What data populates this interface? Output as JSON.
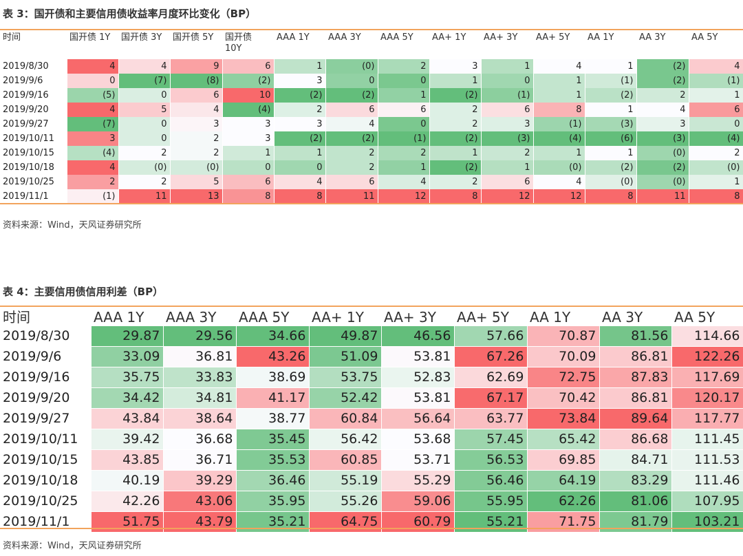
{
  "table3": {
    "title": "表 3：国开债和主要信用债收益率月度环比变化（BP）",
    "headers": [
      "时间",
      "国开债 1Y",
      "国开债 3Y",
      "国开债 5Y",
      "国开债 10Y",
      "AAA 1Y",
      "AAA 3Y",
      "AAA 5Y",
      "AA+ 1Y",
      "AA+ 3Y",
      "AA+ 5Y",
      "AA 1Y",
      "AA 3Y",
      "AA 5Y"
    ],
    "rows": [
      {
        "date": "2019/8/30",
        "cells": [
          "4",
          "4",
          "9",
          "6",
          "1",
          "(0)",
          "2",
          "3",
          "1",
          "4",
          "1",
          "(2)",
          "4"
        ]
      },
      {
        "date": "2019/9/6",
        "cells": [
          "0",
          "(7)",
          "(8)",
          "(2)",
          "3",
          "0",
          "0",
          "1",
          "0",
          "1",
          "(1)",
          "(2)",
          "(1)"
        ]
      },
      {
        "date": "2019/9/16",
        "cells": [
          "(5)",
          "0",
          "6",
          "10",
          "(2)",
          "(2)",
          "1",
          "(2)",
          "(1)",
          "1",
          "(2)",
          "2",
          "1"
        ]
      },
      {
        "date": "2019/9/20",
        "cells": [
          "4",
          "5",
          "4",
          "(4)",
          "2",
          "6",
          "6",
          "2",
          "6",
          "8",
          "1",
          "4",
          "6"
        ]
      },
      {
        "date": "2019/9/27",
        "cells": [
          "(7)",
          "0",
          "3",
          "3",
          "3",
          "4",
          "0",
          "2",
          "3",
          "(1)",
          "(3)",
          "3",
          "0"
        ]
      },
      {
        "date": "2019/10/11",
        "cells": [
          "3",
          "0",
          "2",
          "3",
          "(2)",
          "(2)",
          "(1)",
          "(2)",
          "(3)",
          "(4)",
          "(6)",
          "(3)",
          "(4)"
        ]
      },
      {
        "date": "2019/10/15",
        "cells": [
          "(4)",
          "2",
          "2",
          "1",
          "1",
          "2",
          "2",
          "1",
          "2",
          "1",
          "1",
          "(0)",
          "2"
        ]
      },
      {
        "date": "2019/10/18",
        "cells": [
          "4",
          "(0)",
          "(0)",
          "0",
          "0",
          "2",
          "1",
          "(2)",
          "1",
          "(0)",
          "(2)",
          "(2)",
          "(0)"
        ]
      },
      {
        "date": "2019/10/25",
        "cells": [
          "2",
          "2",
          "5",
          "6",
          "4",
          "6",
          "4",
          "2",
          "6",
          "4",
          "(0)",
          "(0)",
          "1"
        ]
      },
      {
        "date": "2019/11/1",
        "cells": [
          "(1)",
          "11",
          "13",
          "8",
          "8",
          "11",
          "12",
          "8",
          "12",
          "12",
          "8",
          "11",
          "8"
        ]
      }
    ],
    "source": "资料来源：Wind，天风证券研究所"
  },
  "table4": {
    "title": "表 4：主要信用债信用利差（BP）",
    "headers": [
      "时间",
      "AAA 1Y",
      "AAA 3Y",
      "AAA 5Y",
      "AA+ 1Y",
      "AA+ 3Y",
      "AA+ 5Y",
      "AA 1Y",
      "AA 3Y",
      "AA 5Y"
    ],
    "rows": [
      {
        "date": "2019/8/30",
        "cells": [
          "29.87",
          "29.56",
          "34.66",
          "49.87",
          "46.56",
          "57.66",
          "70.87",
          "81.56",
          "114.66"
        ]
      },
      {
        "date": "2019/9/6",
        "cells": [
          "33.09",
          "36.81",
          "43.26",
          "51.09",
          "53.81",
          "67.26",
          "70.09",
          "86.81",
          "122.26"
        ]
      },
      {
        "date": "2019/9/16",
        "cells": [
          "35.75",
          "33.83",
          "38.69",
          "53.75",
          "52.83",
          "62.69",
          "72.75",
          "87.83",
          "117.69"
        ]
      },
      {
        "date": "2019/9/20",
        "cells": [
          "34.42",
          "34.81",
          "41.17",
          "52.42",
          "53.81",
          "67.17",
          "70.42",
          "86.81",
          "120.17"
        ]
      },
      {
        "date": "2019/9/27",
        "cells": [
          "43.84",
          "38.64",
          "38.77",
          "60.84",
          "56.64",
          "63.77",
          "73.84",
          "89.64",
          "117.77"
        ]
      },
      {
        "date": "2019/10/11",
        "cells": [
          "39.42",
          "36.68",
          "35.45",
          "56.42",
          "53.68",
          "57.45",
          "65.42",
          "86.68",
          "111.45"
        ]
      },
      {
        "date": "2019/10/15",
        "cells": [
          "43.85",
          "36.71",
          "35.53",
          "60.85",
          "53.71",
          "56.53",
          "69.85",
          "84.71",
          "111.53"
        ]
      },
      {
        "date": "2019/10/18",
        "cells": [
          "40.19",
          "39.29",
          "36.46",
          "55.19",
          "55.29",
          "56.46",
          "64.19",
          "83.29",
          "111.46"
        ]
      },
      {
        "date": "2019/10/25",
        "cells": [
          "42.26",
          "43.06",
          "35.95",
          "55.26",
          "59.06",
          "55.95",
          "62.26",
          "81.06",
          "107.95"
        ]
      },
      {
        "date": "2019/11/1",
        "cells": [
          "51.75",
          "43.79",
          "35.21",
          "64.75",
          "60.79",
          "55.21",
          "71.75",
          "81.79",
          "103.21"
        ]
      }
    ],
    "source": "资料来源：Wind，天风证券研究所"
  },
  "colors": {
    "green_strong": "#63be7b",
    "white": "#fcfcff",
    "red_strong": "#f8696b",
    "rule": "#f2a35c"
  }
}
